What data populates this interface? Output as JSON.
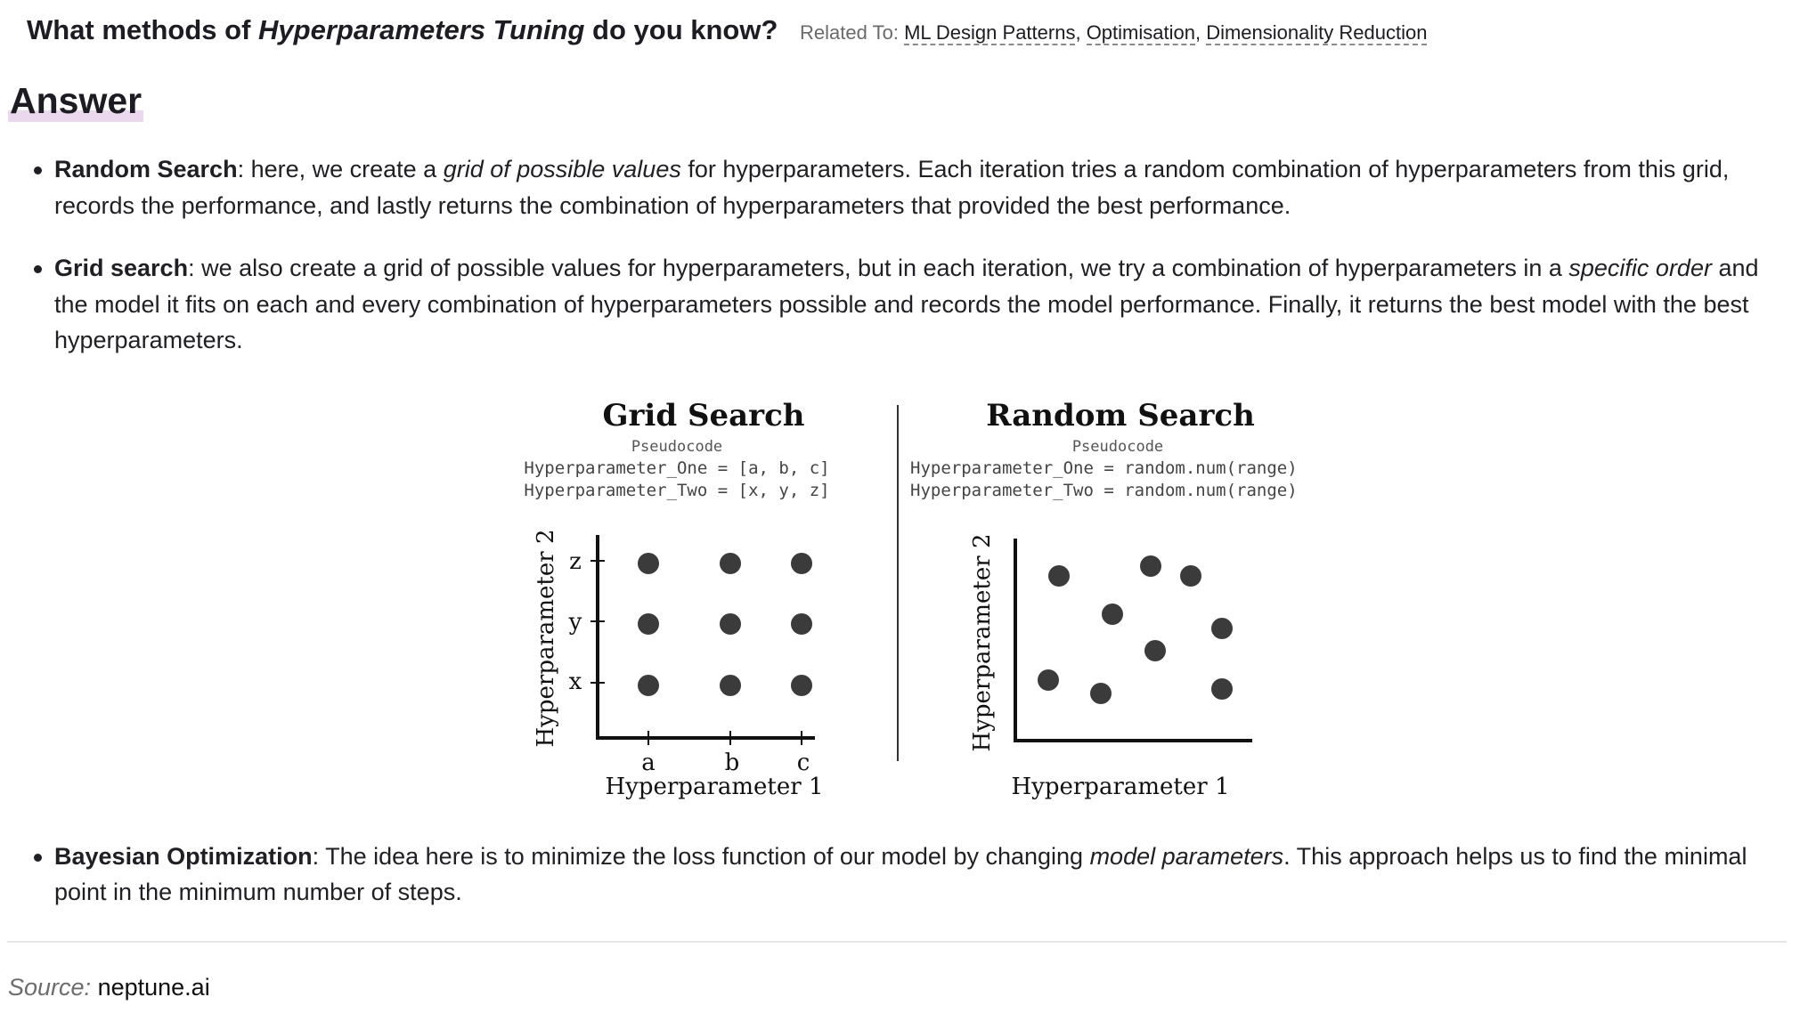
{
  "question": {
    "prefix": "What methods of ",
    "emphasis": "Hyperparameters Tuning",
    "suffix": " do you know?",
    "related_label": "Related To: ",
    "related_links": [
      "ML Design Patterns",
      "Optimisation",
      "Dimensionality Reduction"
    ]
  },
  "answer_heading": "Answer",
  "bullets": [
    {
      "title": "Random Search",
      "t1": ": here, we create a ",
      "em1": "grid of possible values",
      "t2": " for hyperparameters. Each iteration tries a random combination of hyperparameters from this grid, records the performance, and lastly returns the combination of hyperparameters that provided the best performance."
    },
    {
      "title": "Grid search",
      "t1": ": we also create a grid of possible values for hyperparameters, but in each iteration, we try a combination of hyperparameters in a ",
      "em1": "specific order",
      "t2": " and the model it fits on each and every combination of hyperparameters possible and records the model performance. Finally, it returns the best model with the best hyperparameters."
    },
    {
      "title": "Bayesian Optimization",
      "t1": ": The idea here is to minimize the loss function of our model by changing ",
      "em1": "model parameters",
      "t2": ". This approach helps us to find the minimal point in the minimum number of steps."
    }
  ],
  "figure": {
    "grid": {
      "title": "Grid Search",
      "pseudo_label": "Pseudocode",
      "code1": "Hyperparameter_One = [a, b, c]",
      "code2": "Hyperparameter_Two = [x, y, z]",
      "ylabel": "Hyperparameter 2",
      "xlabel": "Hyperparameter 1",
      "xticks": [
        "a",
        "b",
        "c"
      ],
      "yticks": [
        "x",
        "y",
        "z"
      ]
    },
    "random": {
      "title": "Random Search",
      "pseudo_label": "Pseudocode",
      "code1": "Hyperparameter_One = random.num(range)",
      "code2": "Hyperparameter_Two = random.num(range)",
      "ylabel": "Hyperparameter 2",
      "xlabel": "Hyperparameter 1"
    }
  },
  "source": {
    "label": "Source:",
    "value": "neptune.ai"
  }
}
